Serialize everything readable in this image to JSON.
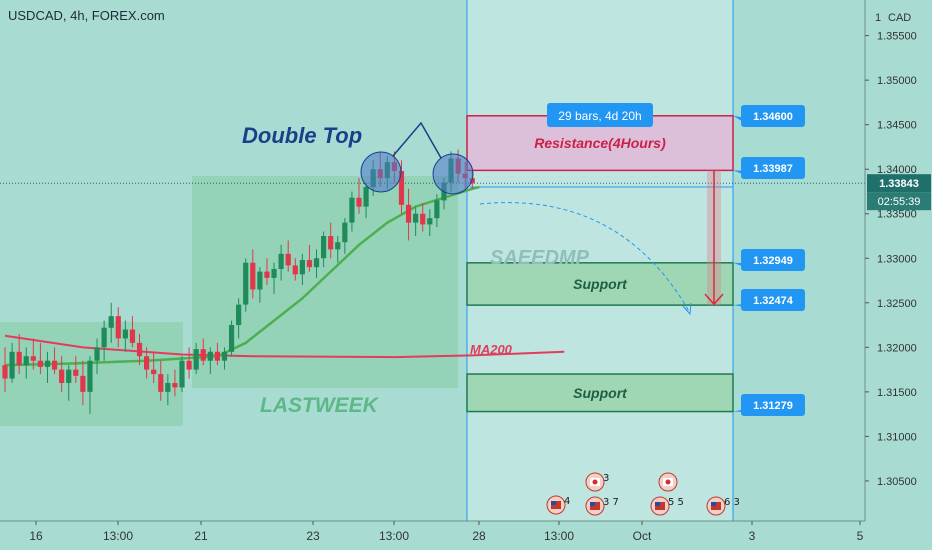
{
  "header": {
    "title": "USDCAD, 4h, FOREX.com"
  },
  "colors": {
    "background": "#a8dcd2",
    "up": "#1f8a5a",
    "down": "#e0384a",
    "ma200": "#e23c5c",
    "ma_fast": "#4caf50",
    "resistance_fill": "#dcbfd8",
    "resistance_border": "#cc1f4a",
    "support_fill": "#9fd6b4",
    "support_border": "#1d7a50",
    "blue": "#2196f3",
    "projection_fill": "#c2e6e3"
  },
  "chart_data": {
    "type": "candlestick",
    "symbol": "USDCAD",
    "timeframe": "4h",
    "source": "FOREX.com",
    "currency": "CAD",
    "ylim": [
      1.3005,
      1.359
    ],
    "y_ticks": [
      1.355,
      1.35,
      1.345,
      1.34,
      1.335,
      1.33,
      1.325,
      1.32,
      1.315,
      1.31,
      1.305
    ],
    "y_tick_labels": [
      "1.35500",
      "1.35000",
      "1.34500",
      "1.34000",
      "1.33500",
      "1.33000",
      "1.32500",
      "1.32000",
      "1.31500",
      "1.31000",
      "1.30500"
    ],
    "x_tick_labels": [
      "16",
      "13:00",
      "21",
      "23",
      "13:00",
      "28",
      "13:00",
      "Oct",
      "3",
      "5"
    ],
    "current_price": "1.33843",
    "countdown": "02:55:39",
    "price_labels": [
      "1.34600",
      "1.33987",
      "1.32949",
      "1.32474",
      "1.31279"
    ],
    "measure_label": "29 bars, 4d 20h",
    "ohlc": [
      [
        1.318,
        1.32,
        1.315,
        1.3165
      ],
      [
        1.3165,
        1.3205,
        1.316,
        1.3195
      ],
      [
        1.3195,
        1.3215,
        1.317,
        1.318
      ],
      [
        1.318,
        1.32,
        1.3165,
        1.319
      ],
      [
        1.319,
        1.321,
        1.3175,
        1.3185
      ],
      [
        1.3185,
        1.3205,
        1.317,
        1.3178
      ],
      [
        1.3178,
        1.3195,
        1.316,
        1.3185
      ],
      [
        1.3185,
        1.32,
        1.317,
        1.3175
      ],
      [
        1.3175,
        1.319,
        1.315,
        1.316
      ],
      [
        1.316,
        1.318,
        1.314,
        1.3175
      ],
      [
        1.3175,
        1.319,
        1.316,
        1.3168
      ],
      [
        1.3168,
        1.3185,
        1.3135,
        1.315
      ],
      [
        1.315,
        1.319,
        1.3125,
        1.3185
      ],
      [
        1.3185,
        1.321,
        1.317,
        1.32
      ],
      [
        1.32,
        1.323,
        1.3185,
        1.3222
      ],
      [
        1.3222,
        1.325,
        1.3205,
        1.3235
      ],
      [
        1.3235,
        1.3245,
        1.32,
        1.321
      ],
      [
        1.321,
        1.323,
        1.3195,
        1.322
      ],
      [
        1.322,
        1.3235,
        1.32,
        1.3205
      ],
      [
        1.3205,
        1.3215,
        1.318,
        1.319
      ],
      [
        1.319,
        1.32,
        1.3165,
        1.3175
      ],
      [
        1.3175,
        1.3195,
        1.316,
        1.317
      ],
      [
        1.317,
        1.3185,
        1.314,
        1.315
      ],
      [
        1.315,
        1.317,
        1.3135,
        1.316
      ],
      [
        1.316,
        1.3175,
        1.3145,
        1.3155
      ],
      [
        1.3155,
        1.319,
        1.315,
        1.3185
      ],
      [
        1.3185,
        1.32,
        1.3165,
        1.3175
      ],
      [
        1.3175,
        1.3205,
        1.317,
        1.3198
      ],
      [
        1.3198,
        1.321,
        1.318,
        1.3185
      ],
      [
        1.3185,
        1.32,
        1.317,
        1.3195
      ],
      [
        1.3195,
        1.3205,
        1.318,
        1.3185
      ],
      [
        1.3185,
        1.32,
        1.3175,
        1.3195
      ],
      [
        1.3195,
        1.323,
        1.319,
        1.3225
      ],
      [
        1.3225,
        1.3255,
        1.321,
        1.3248
      ],
      [
        1.3248,
        1.33,
        1.324,
        1.3295
      ],
      [
        1.3295,
        1.331,
        1.3255,
        1.3265
      ],
      [
        1.3265,
        1.329,
        1.325,
        1.3285
      ],
      [
        1.3285,
        1.33,
        1.327,
        1.3278
      ],
      [
        1.3278,
        1.3295,
        1.326,
        1.3288
      ],
      [
        1.3288,
        1.3315,
        1.3275,
        1.3305
      ],
      [
        1.3305,
        1.332,
        1.3285,
        1.3292
      ],
      [
        1.3292,
        1.33,
        1.3275,
        1.3282
      ],
      [
        1.3282,
        1.3305,
        1.327,
        1.3298
      ],
      [
        1.3298,
        1.3315,
        1.3285,
        1.329
      ],
      [
        1.329,
        1.331,
        1.3278,
        1.33
      ],
      [
        1.33,
        1.333,
        1.329,
        1.3325
      ],
      [
        1.3325,
        1.334,
        1.33,
        1.331
      ],
      [
        1.331,
        1.3325,
        1.3295,
        1.3318
      ],
      [
        1.3318,
        1.3345,
        1.3305,
        1.334
      ],
      [
        1.334,
        1.3375,
        1.333,
        1.3368
      ],
      [
        1.3368,
        1.339,
        1.335,
        1.3358
      ],
      [
        1.3358,
        1.3385,
        1.3345,
        1.338
      ],
      [
        1.338,
        1.341,
        1.337,
        1.34
      ],
      [
        1.34,
        1.342,
        1.338,
        1.339
      ],
      [
        1.339,
        1.3415,
        1.3378,
        1.3408
      ],
      [
        1.3408,
        1.342,
        1.3385,
        1.3398
      ],
      [
        1.3398,
        1.341,
        1.335,
        1.336
      ],
      [
        1.336,
        1.3378,
        1.332,
        1.334
      ],
      [
        1.334,
        1.3358,
        1.3325,
        1.335
      ],
      [
        1.335,
        1.3362,
        1.333,
        1.3338
      ],
      [
        1.3338,
        1.3355,
        1.3325,
        1.3345
      ],
      [
        1.3345,
        1.3372,
        1.3335,
        1.3365
      ],
      [
        1.3365,
        1.339,
        1.3355,
        1.3385
      ],
      [
        1.3385,
        1.342,
        1.3375,
        1.3412
      ],
      [
        1.3412,
        1.3422,
        1.3385,
        1.3395
      ],
      [
        1.3395,
        1.3408,
        1.3378,
        1.339
      ],
      [
        1.339,
        1.3398,
        1.3378,
        1.3384
      ]
    ],
    "ma200": [
      [
        0,
        1.3213
      ],
      [
        11,
        1.32
      ],
      [
        25,
        1.3192
      ],
      [
        35,
        1.319
      ],
      [
        55,
        1.3189
      ],
      [
        66,
        1.3191
      ],
      [
        79,
        1.3195
      ]
    ],
    "ma_fast": [
      [
        0,
        1.318
      ],
      [
        10,
        1.3182
      ],
      [
        20,
        1.3185
      ],
      [
        30,
        1.319
      ],
      [
        34,
        1.3205
      ],
      [
        38,
        1.323
      ],
      [
        42,
        1.3255
      ],
      [
        46,
        1.3285
      ],
      [
        50,
        1.3315
      ],
      [
        54,
        1.334
      ],
      [
        58,
        1.3358
      ],
      [
        62,
        1.3368
      ],
      [
        66,
        1.3378
      ],
      [
        67,
        1.338
      ]
    ],
    "zones": [
      {
        "label": "Resistance(4Hours)",
        "from": 1.33987,
        "to": 1.346,
        "kind": "resistance"
      },
      {
        "label": "Support",
        "from": 1.32474,
        "to": 1.32949,
        "kind": "support"
      },
      {
        "label": "Support",
        "from": 1.31279,
        "to": 1.317,
        "kind": "support"
      }
    ],
    "annotations": {
      "pattern": "Double Top",
      "ma200_label": "MA200",
      "last_week": "LASTWEEK",
      "watermark": "SAEEDMP"
    },
    "events": [
      {
        "flag": "us",
        "count": "4"
      },
      {
        "flag": "ca",
        "count": "3"
      },
      {
        "flag": "us",
        "count": "3 7"
      },
      {
        "flag": "ca",
        "count": ""
      },
      {
        "flag": "us",
        "count": "5 5"
      },
      {
        "flag": "us",
        "count": "6 3"
      }
    ]
  }
}
